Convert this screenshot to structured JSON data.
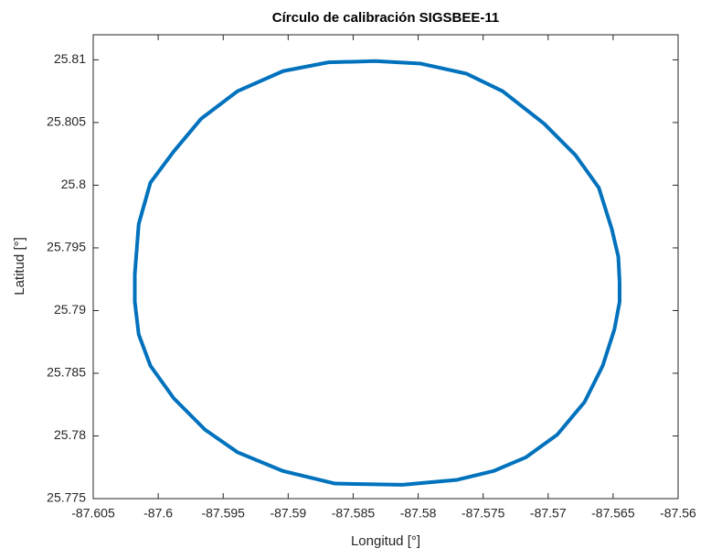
{
  "chart_data": {
    "type": "line",
    "title": "Círculo de calibración SIGSBEE-11",
    "x_label": "Longitud [°]",
    "y_label": "Latitud [°]",
    "series": [
      {
        "color": "#0072bd",
        "x": [
          -87.5645,
          -87.5645,
          -87.5649,
          -87.5658,
          -87.5672,
          -87.5693,
          -87.5717,
          -87.5742,
          -87.577,
          -87.5812,
          -87.5864,
          -87.5904,
          -87.5939,
          -87.5964,
          -87.5988,
          -87.6006,
          -87.6015,
          -87.6018,
          -87.6018,
          -87.6015,
          -87.6006,
          -87.5988,
          -87.5967,
          -87.5939,
          -87.5904,
          -87.5869,
          -87.5833,
          -87.5798,
          -87.5763,
          -87.5735,
          -87.5703,
          -87.5679,
          -87.5661,
          -87.5651,
          -87.5646,
          -87.5645
        ],
        "values": [
          25.7923,
          25.7907,
          25.7885,
          25.7856,
          25.7827,
          25.7801,
          25.7783,
          25.7772,
          25.7765,
          25.7761,
          25.7762,
          25.7772,
          25.7787,
          25.7805,
          25.783,
          25.7856,
          25.7881,
          25.7907,
          25.7929,
          25.7969,
          25.8002,
          25.8027,
          25.8053,
          25.8075,
          25.8091,
          25.8098,
          25.8099,
          25.8097,
          25.8089,
          25.8075,
          25.8049,
          25.8024,
          25.7998,
          25.7965,
          25.7943,
          25.7923
        ]
      }
    ],
    "xlim": [
      -87.605,
      -87.56
    ],
    "xticks": [
      -87.605,
      -87.6,
      -87.595,
      -87.59,
      -87.585,
      -87.58,
      -87.575,
      -87.57,
      -87.565,
      -87.56
    ],
    "ylim": [
      25.775,
      25.812
    ],
    "yticks": [
      25.775,
      25.78,
      25.785,
      25.79,
      25.795,
      25.8,
      25.805,
      25.81
    ]
  }
}
